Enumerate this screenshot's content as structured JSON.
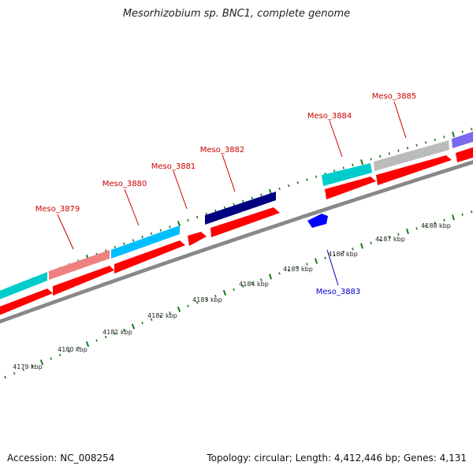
{
  "title": "Mesorhizobium sp. BNC1, complete genome",
  "footer": {
    "accession": "Accession: NC_008254",
    "stats": "Topology: circular; Length: 4,412,446 bp; Genes: 4,131"
  },
  "colors": {
    "cds_forward": "#ff0000",
    "tick": "#1a7a1a",
    "backbone": "#888888",
    "label_forward": "#cc0000",
    "label_reverse": "#0000cc"
  },
  "scale_labels": [
    {
      "text": "4179 kbp",
      "kbp": 4179
    },
    {
      "text": "4180 kbp",
      "kbp": 4180
    },
    {
      "text": "4181 kbp",
      "kbp": 4181
    },
    {
      "text": "4182 kbp",
      "kbp": 4182
    },
    {
      "text": "4183 kbp",
      "kbp": 4183
    },
    {
      "text": "4184 kbp",
      "kbp": 4184
    },
    {
      "text": "4185 kbp",
      "kbp": 4185
    },
    {
      "text": "4186 kbp",
      "kbp": 4186
    },
    {
      "text": "4187 kbp",
      "kbp": 4187
    },
    {
      "text": "4188 kbp",
      "kbp": 4188
    }
  ],
  "gene_labels": [
    {
      "text": "Meso_3879",
      "strand": "forward"
    },
    {
      "text": "Meso_3880",
      "strand": "forward"
    },
    {
      "text": "Meso_3881",
      "strand": "forward"
    },
    {
      "text": "Meso_3882",
      "strand": "forward"
    },
    {
      "text": "Meso_3883",
      "strand": "reverse"
    },
    {
      "text": "Meso_3884",
      "strand": "forward"
    },
    {
      "text": "Meso_3885",
      "strand": "forward"
    }
  ],
  "cog_colors": [
    "#00cccc",
    "#f08080",
    "#00bfff",
    "#000080",
    "#bbbbbb",
    "#7b68ee",
    "#0000ff"
  ]
}
